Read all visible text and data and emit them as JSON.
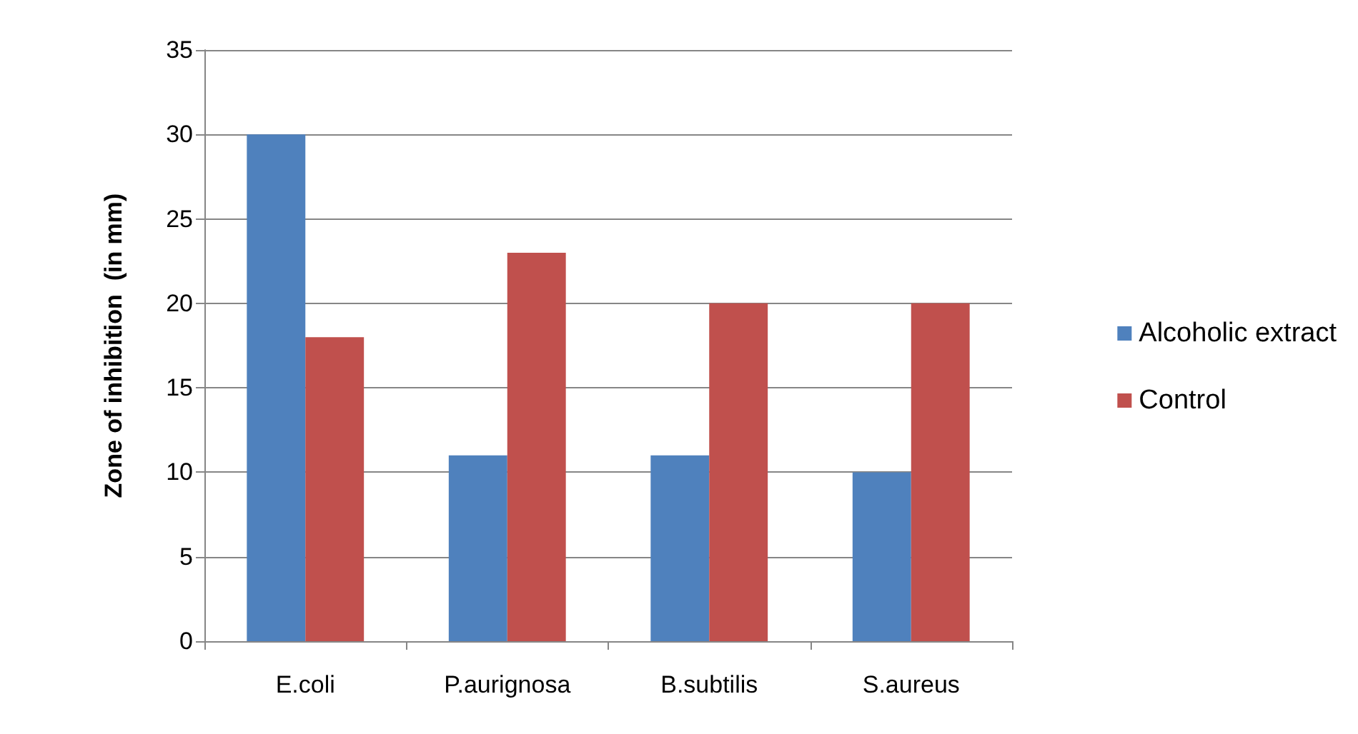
{
  "chart_data": {
    "type": "bar",
    "ylabel": "Zone of inhibition  (in mm)",
    "categories": [
      "E.coli",
      "P.aurignosa",
      "B.subtilis",
      "S.aureus"
    ],
    "series": [
      {
        "name": "Alcoholic extract",
        "color": "#4f81bd",
        "values": [
          30,
          11,
          11,
          10
        ]
      },
      {
        "name": "Control",
        "color": "#c0504d",
        "values": [
          18,
          23,
          20,
          20
        ]
      }
    ],
    "ylim": [
      0,
      35
    ],
    "yticks": [
      0,
      5,
      10,
      15,
      20,
      25,
      30,
      35
    ],
    "grid": "y",
    "legend": "right"
  }
}
